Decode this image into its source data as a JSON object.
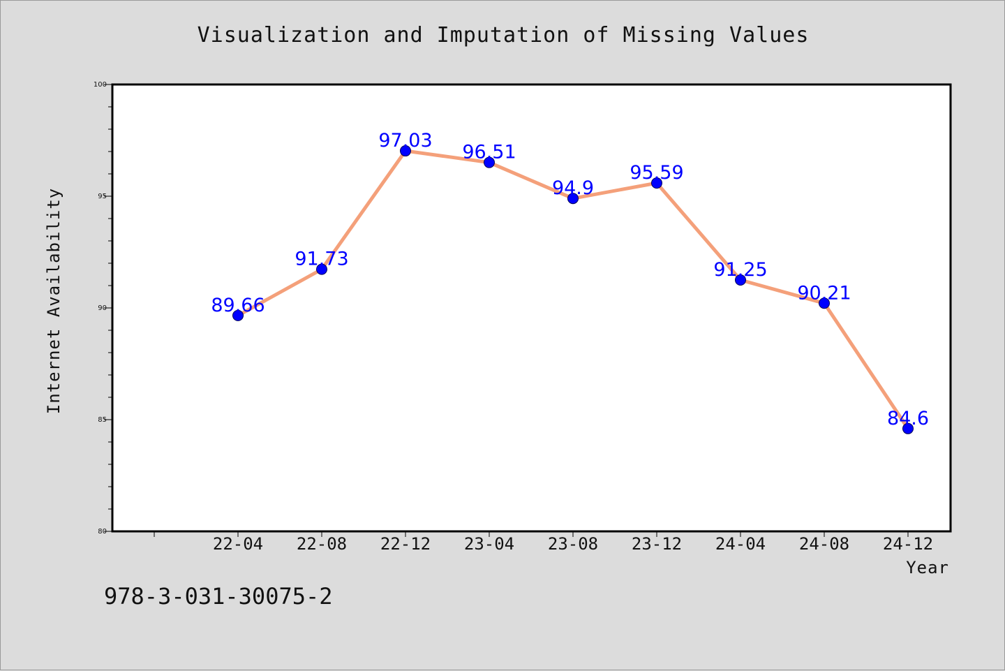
{
  "chart_data": {
    "type": "line",
    "title": "Visualization and Imputation of Missing Values",
    "xlabel": "Year",
    "ylabel": "Internet Availability",
    "categories": [
      "22-04",
      "22-08",
      "22-12",
      "23-04",
      "23-08",
      "23-12",
      "24-04",
      "24-08",
      "24-12"
    ],
    "series": [
      {
        "values": [
          89.66,
          91.73,
          97.03,
          96.51,
          94.9,
          95.59,
          91.25,
          90.21,
          84.6
        ],
        "labels": [
          "89.66",
          "91.73",
          "97.03",
          "96.51",
          "94.9",
          "95.59",
          "91.25",
          "90.21",
          "84.6"
        ],
        "line_color": "#f4a07a",
        "marker_color": "#0000ff"
      }
    ],
    "ylim": [
      80,
      100
    ],
    "y_ticks": [
      80,
      85,
      90,
      95,
      100
    ],
    "grid": false,
    "legend": "none"
  },
  "annotation": "978-3-031-30075-2"
}
